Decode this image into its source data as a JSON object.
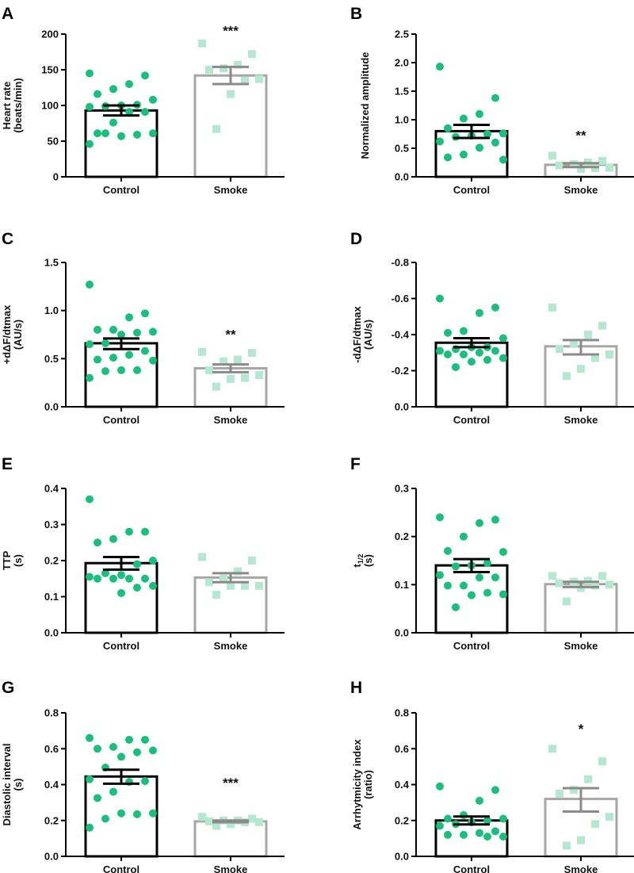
{
  "colors": {
    "control_dot": "#17c07c",
    "smoke_dot": "#b5e8d2",
    "control_bar": "#000000",
    "smoke_bar": "#a6a6a6",
    "smoke_err": "#8a8a8a"
  },
  "chart_data": [
    {
      "panel": "A",
      "type": "bar",
      "ylabel": [
        "Heart rate",
        "(beats/min)"
      ],
      "ylim": [
        0,
        200
      ],
      "yticks": [
        0,
        50,
        100,
        150,
        200
      ],
      "ytick_labels": [
        "0",
        "50",
        "100",
        "150",
        "200"
      ],
      "categories": [
        "Control",
        "Smoke"
      ],
      "series": [
        {
          "name": "Control",
          "mean": 93,
          "sem_range": [
            86,
            100
          ],
          "points": [
            145,
            142,
            130,
            123,
            116,
            108,
            101,
            100,
            99,
            98,
            91,
            91,
            76,
            61,
            61,
            59,
            57,
            61,
            46
          ]
        },
        {
          "name": "Smoke",
          "mean": 142,
          "sem_range": [
            130,
            154
          ],
          "points": [
            187,
            172,
            157,
            152,
            150,
            137,
            135,
            116,
            67
          ]
        }
      ],
      "significance": {
        "label": "***",
        "group": "Smoke",
        "y": 207
      }
    },
    {
      "panel": "B",
      "type": "bar",
      "ylabel": [
        "Normalized amplitude"
      ],
      "ylim": [
        0,
        2.5
      ],
      "yticks": [
        0,
        0.5,
        1,
        1.5,
        2,
        2.5
      ],
      "ytick_labels": [
        "0.0",
        "0.5",
        "1.0",
        "1.5",
        "2.0",
        "2.5"
      ],
      "categories": [
        "Control",
        "Smoke"
      ],
      "series": [
        {
          "name": "Control",
          "mean": 0.8,
          "sem_range": [
            0.68,
            0.91
          ],
          "points": [
            1.93,
            1.38,
            1.1,
            1.02,
            0.85,
            0.76,
            0.75,
            0.72,
            0.7,
            0.62,
            0.6,
            0.51,
            0.39,
            0.34,
            0.3
          ]
        },
        {
          "name": "Smoke",
          "mean": 0.21,
          "sem_range": [
            0.17,
            0.24
          ],
          "points": [
            0.37,
            0.28,
            0.25,
            0.22,
            0.2,
            0.16,
            0.15,
            0.14
          ]
        }
      ],
      "significance": {
        "label": "**",
        "group": "Smoke",
        "y": 0.76
      }
    },
    {
      "panel": "C",
      "type": "bar",
      "ylabel": [
        "+dΔF/dtmax",
        "(AU/s)"
      ],
      "ylim": [
        0,
        1.5
      ],
      "yticks": [
        0,
        0.5,
        1,
        1.5
      ],
      "ytick_labels": [
        "0.0",
        "0.5",
        "1.0",
        "1.5"
      ],
      "categories": [
        "Control",
        "Smoke"
      ],
      "series": [
        {
          "name": "Control",
          "mean": 0.66,
          "sem_range": [
            0.6,
            0.71
          ],
          "points": [
            1.27,
            0.97,
            0.93,
            0.8,
            0.8,
            0.78,
            0.77,
            0.75,
            0.66,
            0.65,
            0.58,
            0.54,
            0.51,
            0.49,
            0.48,
            0.38,
            0.38,
            0.37,
            0.3
          ]
        },
        {
          "name": "Smoke",
          "mean": 0.4,
          "sem_range": [
            0.36,
            0.44
          ],
          "points": [
            0.57,
            0.56,
            0.49,
            0.47,
            0.38,
            0.33,
            0.3,
            0.29,
            0.21
          ]
        }
      ],
      "significance": {
        "label": "**",
        "group": "Smoke",
        "y": 0.77
      }
    },
    {
      "panel": "D",
      "type": "bar",
      "ylabel": [
        "-dΔF/dtmax",
        "(AU/s)"
      ],
      "ylim": [
        0,
        -0.8
      ],
      "yticks": [
        0,
        -0.2,
        -0.4,
        -0.6,
        -0.8
      ],
      "ytick_labels": [
        "0.0",
        "-0.2",
        "-0.4",
        "-0.6",
        "-0.8"
      ],
      "categories": [
        "Control",
        "Smoke"
      ],
      "series": [
        {
          "name": "Control",
          "mean": -0.355,
          "sem_range": [
            -0.33,
            -0.38
          ],
          "points": [
            -0.6,
            -0.55,
            -0.52,
            -0.42,
            -0.41,
            -0.38,
            -0.33,
            -0.33,
            -0.32,
            -0.31,
            -0.31,
            -0.3,
            -0.29,
            -0.29,
            -0.27,
            -0.26,
            -0.25,
            -0.22
          ]
        },
        {
          "name": "Smoke",
          "mean": -0.335,
          "sem_range": [
            -0.29,
            -0.37
          ],
          "points": [
            -0.55,
            -0.45,
            -0.4,
            -0.35,
            -0.32,
            -0.29,
            -0.27,
            -0.21,
            -0.17
          ]
        }
      ]
    },
    {
      "panel": "E",
      "type": "bar",
      "ylabel": [
        "TTP",
        "(s)"
      ],
      "ylim": [
        0,
        0.4
      ],
      "yticks": [
        0,
        0.1,
        0.2,
        0.3,
        0.4
      ],
      "ytick_labels": [
        "0.0",
        "0.1",
        "0.2",
        "0.3",
        "0.4"
      ],
      "categories": [
        "Control",
        "Smoke"
      ],
      "series": [
        {
          "name": "Control",
          "mean": 0.193,
          "sem_range": [
            0.175,
            0.21
          ],
          "points": [
            0.37,
            0.28,
            0.28,
            0.26,
            0.25,
            0.2,
            0.19,
            0.16,
            0.165,
            0.155,
            0.15,
            0.15,
            0.15,
            0.15,
            0.13,
            0.125,
            0.11
          ]
        },
        {
          "name": "Smoke",
          "mean": 0.153,
          "sem_range": [
            0.14,
            0.165
          ],
          "points": [
            0.21,
            0.2,
            0.17,
            0.15,
            0.14,
            0.13,
            0.13,
            0.13,
            0.105
          ]
        }
      ]
    },
    {
      "panel": "F",
      "type": "bar",
      "ylabel": [
        "t",
        "(s)"
      ],
      "ylabel_sub": "1/2",
      "ylim": [
        0,
        0.3
      ],
      "yticks": [
        0,
        0.1,
        0.2,
        0.3
      ],
      "ytick_labels": [
        "0.0",
        "0.1",
        "0.2",
        "0.3"
      ],
      "categories": [
        "Control",
        "Smoke"
      ],
      "series": [
        {
          "name": "Control",
          "mean": 0.14,
          "sem_range": [
            0.126,
            0.153
          ],
          "points": [
            0.24,
            0.235,
            0.228,
            0.2,
            0.17,
            0.168,
            0.145,
            0.14,
            0.138,
            0.12,
            0.115,
            0.115,
            0.098,
            0.098,
            0.08,
            0.083,
            0.078,
            0.053
          ]
        },
        {
          "name": "Smoke",
          "mean": 0.101,
          "sem_range": [
            0.095,
            0.106
          ],
          "points": [
            0.118,
            0.118,
            0.108,
            0.106,
            0.103,
            0.1,
            0.098,
            0.093,
            0.065
          ]
        }
      ]
    },
    {
      "panel": "G",
      "type": "bar",
      "ylabel": [
        "Diastolic interval",
        "(s)"
      ],
      "ylim": [
        0,
        0.8
      ],
      "yticks": [
        0,
        0.2,
        0.4,
        0.6,
        0.8
      ],
      "ytick_labels": [
        "0.0",
        "0.2",
        "0.4",
        "0.6",
        "0.8"
      ],
      "categories": [
        "Control",
        "Smoke"
      ],
      "series": [
        {
          "name": "Control",
          "mean": 0.445,
          "sem_range": [
            0.405,
            0.483
          ],
          "points": [
            0.66,
            0.65,
            0.65,
            0.61,
            0.6,
            0.59,
            0.58,
            0.555,
            0.495,
            0.43,
            0.42,
            0.415,
            0.36,
            0.325,
            0.24,
            0.235,
            0.24,
            0.21,
            0.16
          ]
        },
        {
          "name": "Smoke",
          "mean": 0.195,
          "sem_range": [
            0.19,
            0.2
          ],
          "points": [
            0.22,
            0.21,
            0.2,
            0.2,
            0.195,
            0.19,
            0.19,
            0.18,
            0.17
          ]
        }
      ],
      "significance": {
        "label": "***",
        "group": "Smoke",
        "y": 0.42
      }
    },
    {
      "panel": "H",
      "type": "bar",
      "ylabel": [
        "Arrhytmicity index",
        "(ratio)"
      ],
      "ylim": [
        0,
        0.8
      ],
      "yticks": [
        0,
        0.2,
        0.4,
        0.6,
        0.8
      ],
      "ytick_labels": [
        "0.0",
        "0.2",
        "0.4",
        "0.6",
        "0.8"
      ],
      "categories": [
        "Control",
        "Smoke"
      ],
      "series": [
        {
          "name": "Control",
          "mean": 0.2,
          "sem_range": [
            0.178,
            0.222
          ],
          "points": [
            0.39,
            0.37,
            0.31,
            0.23,
            0.21,
            0.21,
            0.2,
            0.19,
            0.18,
            0.17,
            0.14,
            0.13,
            0.12,
            0.12,
            0.11,
            0.11
          ]
        },
        {
          "name": "Smoke",
          "mean": 0.32,
          "sem_range": [
            0.25,
            0.38
          ],
          "points": [
            0.6,
            0.53,
            0.43,
            0.37,
            0.35,
            0.22,
            0.18,
            0.09,
            0.06
          ]
        }
      ],
      "significance": {
        "label": "*",
        "group": "Smoke",
        "y": 0.72
      }
    }
  ]
}
